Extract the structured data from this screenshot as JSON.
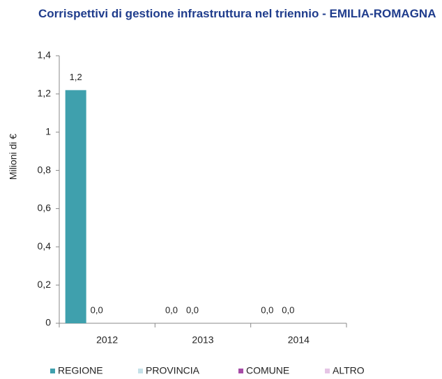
{
  "chart_data": {
    "type": "bar",
    "title": "Corrispettivi di gestione infrastruttura nel triennio - EMILIA-ROMAGNA",
    "y_label": "Milioni di €",
    "categories": [
      "2012",
      "2013",
      "2014"
    ],
    "series": [
      {
        "name": "REGIONE",
        "color": "#3fa0ad",
        "values": [
          1.22,
          0.0,
          0.0
        ],
        "value_labels": [
          "1,2",
          "0,0",
          "0,0"
        ]
      },
      {
        "name": "PROVINCIA",
        "color": "#c5e1e8",
        "values": [
          0.0,
          0.0,
          0.0
        ],
        "value_labels": [
          "0,0",
          "0,0",
          "0,0"
        ]
      },
      {
        "name": "COMUNE",
        "color": "#a64ca6",
        "values": [
          null,
          null,
          null
        ]
      },
      {
        "name": "ALTRO",
        "color": "#e5c5e5",
        "values": [
          null,
          null,
          null
        ]
      }
    ],
    "ylim": [
      0,
      1.4
    ],
    "yticks": [
      0,
      {
        "value": 0.2,
        "label": "0,2"
      },
      {
        "value": 0.4,
        "label": "0,4"
      },
      {
        "value": 0.6,
        "label": "0,6"
      },
      {
        "value": 0.8,
        "label": "0,8"
      },
      1,
      {
        "value": 1.2,
        "label": "1,2"
      },
      {
        "value": 1.4,
        "label": "1,4"
      }
    ],
    "legend": "bottom"
  }
}
